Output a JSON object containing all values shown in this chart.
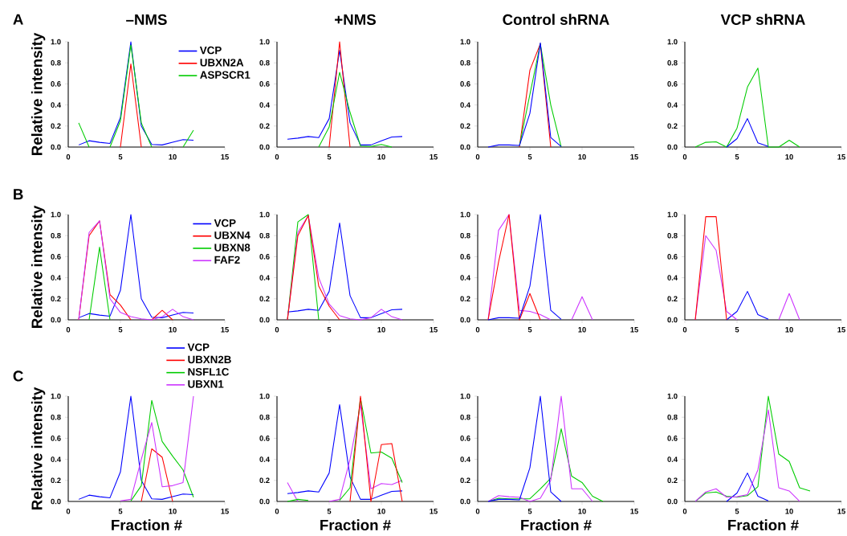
{
  "chart_data": [
    {
      "type": "line",
      "title": "–NMS",
      "ylabel": "Relative intensity",
      "annotations": [
        "A"
      ],
      "legend": "top right",
      "x": [
        1,
        2,
        3,
        4,
        5,
        6,
        7,
        8,
        9,
        10,
        11,
        12
      ],
      "xlim": [
        0,
        15
      ],
      "ylim": [
        0,
        1
      ],
      "xticks": [
        0,
        5,
        10,
        15
      ],
      "yticks": [
        {
          "value": 0,
          "label": "0.0"
        },
        {
          "value": 0.2,
          "label": "0.2"
        },
        {
          "value": 0.4,
          "label": "0.4"
        },
        {
          "value": 0.6,
          "label": "0.6"
        },
        {
          "value": 0.8,
          "label": "0.8"
        },
        {
          "value": 1,
          "label": "1.0"
        }
      ],
      "series": [
        {
          "name": "VCP",
          "color": "#0000ff",
          "values": [
            0.02,
            0.06,
            0.045,
            0.035,
            0.28,
            1.0,
            0.2,
            0.025,
            0.02,
            0.045,
            0.07,
            0.065
          ]
        },
        {
          "name": "UBXN2A",
          "color": "#ff0000",
          "values": [
            null,
            null,
            null,
            null,
            0,
            0.79,
            0,
            null,
            null,
            null,
            null,
            null
          ]
        },
        {
          "name": "ASPSCR1",
          "color": "#00cc00",
          "values": [
            0.23,
            0,
            null,
            0,
            0.25,
            0.97,
            0.23,
            0,
            null,
            null,
            0,
            0.16
          ]
        }
      ]
    },
    {
      "type": "line",
      "title": "+NMS",
      "x": [
        1,
        2,
        3,
        4,
        5,
        6,
        7,
        8,
        9,
        10,
        11,
        12
      ],
      "xlim": [
        0,
        15
      ],
      "ylim": [
        0,
        1
      ],
      "xticks": [
        0,
        5,
        10,
        15
      ],
      "yticks": [
        {
          "value": 0,
          "label": "0.0"
        },
        {
          "value": 0.2,
          "label": "0.2"
        },
        {
          "value": 0.4,
          "label": "0.4"
        },
        {
          "value": 0.6,
          "label": "0.6"
        },
        {
          "value": 0.8,
          "label": "0.8"
        },
        {
          "value": 1,
          "label": "1.0"
        }
      ],
      "series": [
        {
          "color": "#0000ff",
          "values": [
            0.075,
            0.085,
            0.1,
            0.09,
            0.27,
            0.92,
            0.23,
            0.02,
            0.02,
            0.06,
            0.095,
            0.1
          ]
        },
        {
          "color": "#ff0000",
          "values": [
            null,
            null,
            null,
            null,
            0,
            1.0,
            0,
            null,
            null,
            null,
            null,
            null
          ]
        },
        {
          "color": "#00cc00",
          "values": [
            null,
            null,
            null,
            0,
            0.19,
            0.71,
            0.33,
            0.01,
            0.005,
            0.025,
            0,
            null
          ]
        }
      ]
    },
    {
      "type": "line",
      "title": "Control shRNA",
      "x": [
        1,
        2,
        3,
        4,
        5,
        6,
        7,
        8
      ],
      "xlim": [
        0,
        15
      ],
      "ylim": [
        0,
        1
      ],
      "xticks": [
        0,
        5,
        10,
        15
      ],
      "yticks": [
        {
          "value": 0,
          "label": "0.0"
        },
        {
          "value": 0.2,
          "label": "0.2"
        },
        {
          "value": 0.4,
          "label": "0.4"
        },
        {
          "value": 0.6,
          "label": "0.6"
        },
        {
          "value": 0.8,
          "label": "0.8"
        },
        {
          "value": 1,
          "label": "1.0"
        }
      ],
      "series": [
        {
          "color": "#ff0000",
          "values": [
            null,
            null,
            null,
            0,
            0.73,
            0.98,
            0,
            null
          ]
        },
        {
          "color": "#00cc00",
          "values": [
            null,
            null,
            null,
            0.01,
            0.5,
            0.98,
            0.4,
            0
          ]
        },
        {
          "color": "#0000ff",
          "values": [
            0,
            0.02,
            0.02,
            0.015,
            0.32,
            0.99,
            0.09,
            0.005
          ]
        }
      ]
    },
    {
      "type": "line",
      "title": "VCP shRNA",
      "x": [
        1,
        2,
        3,
        4,
        5,
        6,
        7,
        8,
        9,
        10,
        11
      ],
      "xlim": [
        0,
        15
      ],
      "ylim": [
        0,
        1
      ],
      "xticks": [
        0,
        5,
        10,
        15
      ],
      "yticks": [
        {
          "value": 0,
          "label": "0.0"
        },
        {
          "value": 0.2,
          "label": "0.2"
        },
        {
          "value": 0.4,
          "label": "0.4"
        },
        {
          "value": 0.6,
          "label": "0.6"
        },
        {
          "value": 0.8,
          "label": "0.8"
        },
        {
          "value": 1,
          "label": "1.0"
        }
      ],
      "series": [
        {
          "color": "#00cc00",
          "values": [
            0,
            0.045,
            0.05,
            0,
            0.18,
            0.57,
            0.75,
            0,
            0,
            0.065,
            0
          ]
        },
        {
          "color": "#0000ff",
          "values": [
            null,
            null,
            null,
            0,
            0.08,
            0.27,
            0.04,
            0.005,
            null,
            null,
            null
          ]
        }
      ]
    },
    {
      "type": "line",
      "ylabel": "Relative intensity",
      "annotations": [
        "B"
      ],
      "legend": "top right",
      "x": [
        1,
        2,
        3,
        4,
        5,
        6,
        7,
        8,
        9,
        10,
        11,
        12
      ],
      "xlim": [
        0,
        15
      ],
      "ylim": [
        0,
        1
      ],
      "xticks": [
        0,
        5,
        10,
        15
      ],
      "yticks": [
        {
          "value": 0,
          "label": "0.0"
        },
        {
          "value": 0.2,
          "label": "0.2"
        },
        {
          "value": 0.4,
          "label": "0.4"
        },
        {
          "value": 0.6,
          "label": "0.6"
        },
        {
          "value": 0.8,
          "label": "0.8"
        },
        {
          "value": 1,
          "label": "1.0"
        }
      ],
      "series": [
        {
          "name": "VCP",
          "color": "#0000ff",
          "values": [
            0.02,
            0.06,
            0.045,
            0.035,
            0.28,
            1.0,
            0.2,
            0.025,
            0.02,
            0.045,
            0.07,
            0.065
          ]
        },
        {
          "name": "UBXN4",
          "color": "#ff0000",
          "values": [
            0,
            0.8,
            0.94,
            0.24,
            0.14,
            0,
            null,
            0,
            0.09,
            0,
            null,
            null
          ]
        },
        {
          "name": "UBXN8",
          "color": "#00cc00",
          "values": [
            null,
            0,
            0.69,
            0,
            null,
            null,
            null,
            null,
            null,
            null,
            null,
            null
          ]
        },
        {
          "name": "FAF2",
          "color": "#cc33ff",
          "values": [
            0,
            0.83,
            0.94,
            0.2,
            0.07,
            0.03,
            0.01,
            0,
            0.03,
            0.1,
            0.03,
            0
          ]
        }
      ]
    },
    {
      "type": "line",
      "x": [
        1,
        2,
        3,
        4,
        5,
        6,
        7,
        8,
        9,
        10,
        11,
        12
      ],
      "xlim": [
        0,
        15
      ],
      "ylim": [
        0,
        1
      ],
      "xticks": [
        0,
        5,
        10,
        15
      ],
      "yticks": [
        {
          "value": 0,
          "label": "0.0"
        },
        {
          "value": 0.2,
          "label": "0.2"
        },
        {
          "value": 0.4,
          "label": "0.4"
        },
        {
          "value": 0.6,
          "label": "0.6"
        },
        {
          "value": 0.8,
          "label": "0.8"
        },
        {
          "value": 1,
          "label": "1.0"
        }
      ],
      "series": [
        {
          "color": "#0000ff",
          "values": [
            0.075,
            0.085,
            0.1,
            0.09,
            0.27,
            0.92,
            0.23,
            0.02,
            0.02,
            0.06,
            0.095,
            0.1
          ]
        },
        {
          "color": "#00cc00",
          "values": [
            0,
            0.93,
            1.0,
            0,
            null,
            null,
            null,
            null,
            null,
            null,
            null,
            null
          ]
        },
        {
          "color": "#cc33ff",
          "values": [
            0,
            0.83,
            0.99,
            0.4,
            0.15,
            0.04,
            0.01,
            0,
            0.02,
            0.1,
            0.03,
            0
          ]
        },
        {
          "color": "#ff0000",
          "values": [
            0,
            0.8,
            0.99,
            0.32,
            0.13,
            0,
            null,
            null,
            null,
            null,
            null,
            null
          ]
        }
      ]
    },
    {
      "type": "line",
      "x": [
        1,
        2,
        3,
        4,
        5,
        6,
        7,
        8,
        9,
        10,
        11
      ],
      "xlim": [
        0,
        15
      ],
      "ylim": [
        0,
        1
      ],
      "xticks": [
        0,
        5,
        10,
        15
      ],
      "yticks": [
        {
          "value": 0,
          "label": "0.0"
        },
        {
          "value": 0.2,
          "label": "0.2"
        },
        {
          "value": 0.4,
          "label": "0.4"
        },
        {
          "value": 0.6,
          "label": "0.6"
        },
        {
          "value": 0.8,
          "label": "0.8"
        },
        {
          "value": 1,
          "label": "1.0"
        }
      ],
      "series": [
        {
          "color": "#cc33ff",
          "values": [
            0,
            0.85,
            1.0,
            0.09,
            0.08,
            0.05,
            0,
            null,
            0,
            0.22,
            0
          ]
        },
        {
          "color": "#ff0000",
          "values": [
            0,
            0.55,
            1.0,
            0,
            0.25,
            0,
            null,
            null,
            null,
            null,
            null
          ]
        },
        {
          "color": "#0000ff",
          "values": [
            0,
            0.02,
            0.02,
            0.015,
            0.32,
            1.0,
            0.09,
            0.005,
            null,
            null,
            null
          ]
        }
      ]
    },
    {
      "type": "line",
      "x": [
        1,
        2,
        3,
        4,
        5,
        6,
        7,
        8,
        9,
        10,
        11
      ],
      "xlim": [
        0,
        15
      ],
      "ylim": [
        0,
        1
      ],
      "xticks": [
        0,
        5,
        10,
        15
      ],
      "yticks": [
        {
          "value": 0,
          "label": "0.0"
        },
        {
          "value": 0.2,
          "label": "0.2"
        },
        {
          "value": 0.4,
          "label": "0.4"
        },
        {
          "value": 0.6,
          "label": "0.6"
        },
        {
          "value": 0.8,
          "label": "0.8"
        },
        {
          "value": 1,
          "label": "1.0"
        }
      ],
      "series": [
        {
          "color": "#0000ff",
          "values": [
            null,
            null,
            null,
            0,
            0.08,
            0.27,
            0.05,
            0.005,
            null,
            null,
            null
          ]
        },
        {
          "color": "#cc33ff",
          "values": [
            0,
            0.8,
            0.66,
            0.08,
            0,
            null,
            null,
            null,
            0,
            0.25,
            0
          ]
        },
        {
          "color": "#ff0000",
          "values": [
            0,
            0.98,
            0.98,
            0,
            null,
            null,
            null,
            null,
            null,
            null,
            null
          ]
        }
      ]
    },
    {
      "type": "line",
      "ylabel": "Relative intensity",
      "xlabel": "Fraction #",
      "annotations": [
        "C"
      ],
      "legend": "top",
      "x": [
        1,
        2,
        3,
        4,
        5,
        6,
        7,
        8,
        9,
        10,
        11,
        12
      ],
      "xlim": [
        0,
        15
      ],
      "ylim": [
        0,
        1
      ],
      "xticks": [
        0,
        5,
        10,
        15
      ],
      "yticks": [
        {
          "value": 0,
          "label": "0.0"
        },
        {
          "value": 0.2,
          "label": "0.2"
        },
        {
          "value": 0.4,
          "label": "0.4"
        },
        {
          "value": 0.6,
          "label": "0.6"
        },
        {
          "value": 0.8,
          "label": "0.8"
        },
        {
          "value": 1,
          "label": "1.0"
        }
      ],
      "series": [
        {
          "name": "VCP",
          "color": "#0000ff",
          "values": [
            0.02,
            0.06,
            0.045,
            0.035,
            0.28,
            1.0,
            0.2,
            0.025,
            0.02,
            0.045,
            0.07,
            0.065
          ]
        },
        {
          "name": "UBXN2B",
          "color": "#ff0000",
          "values": [
            null,
            null,
            null,
            null,
            null,
            null,
            0,
            0.5,
            0.42,
            0,
            null,
            null
          ]
        },
        {
          "name": "NSFL1C",
          "color": "#00cc00",
          "values": [
            null,
            null,
            null,
            null,
            null,
            0.005,
            0.15,
            0.96,
            0.57,
            0.43,
            0.3,
            0.04
          ]
        },
        {
          "name": "UBXN1",
          "color": "#cc33ff",
          "values": [
            null,
            null,
            null,
            null,
            0.005,
            0.02,
            0.4,
            0.75,
            0.14,
            0.15,
            0.18,
            1.0
          ]
        }
      ]
    },
    {
      "type": "line",
      "xlabel": "Fraction #",
      "x": [
        1,
        2,
        3,
        4,
        5,
        6,
        7,
        8,
        9,
        10,
        11,
        12
      ],
      "xlim": [
        0,
        15
      ],
      "ylim": [
        0,
        1
      ],
      "xticks": [
        0,
        5,
        10,
        15
      ],
      "yticks": [
        {
          "value": 0,
          "label": "0.0"
        },
        {
          "value": 0.2,
          "label": "0.2"
        },
        {
          "value": 0.4,
          "label": "0.4"
        },
        {
          "value": 0.6,
          "label": "0.6"
        },
        {
          "value": 0.8,
          "label": "0.8"
        },
        {
          "value": 1,
          "label": "1.0"
        }
      ],
      "series": [
        {
          "color": "#0000ff",
          "values": [
            0.075,
            0.085,
            0.1,
            0.09,
            0.27,
            0.92,
            0.23,
            0.02,
            0.02,
            0.06,
            0.095,
            0.1
          ]
        },
        {
          "color": "#cc33ff",
          "values": [
            0.18,
            0,
            null,
            null,
            0,
            0.02,
            0.4,
            0.92,
            0.12,
            0.17,
            0.16,
            0.2
          ]
        },
        {
          "color": "#00cc00",
          "values": [
            0,
            0.02,
            0.01,
            null,
            null,
            0.01,
            0.13,
            0.98,
            0.46,
            0.47,
            0.41,
            0.18
          ]
        },
        {
          "color": "#ff0000",
          "values": [
            null,
            null,
            null,
            null,
            null,
            null,
            0,
            1.0,
            0,
            0.54,
            0.55,
            0
          ]
        }
      ]
    },
    {
      "type": "line",
      "xlabel": "Fraction #",
      "x": [
        1,
        2,
        3,
        4,
        5,
        6,
        7,
        8,
        9,
        10,
        11,
        12
      ],
      "xlim": [
        0,
        15
      ],
      "ylim": [
        0,
        1
      ],
      "xticks": [
        0,
        5,
        10,
        15
      ],
      "yticks": [
        {
          "value": 0,
          "label": "0.0"
        },
        {
          "value": 0.2,
          "label": "0.2"
        },
        {
          "value": 0.4,
          "label": "0.4"
        },
        {
          "value": 0.6,
          "label": "0.6"
        },
        {
          "value": 0.8,
          "label": "0.8"
        },
        {
          "value": 1,
          "label": "1.0"
        }
      ],
      "series": [
        {
          "color": "#00cc00",
          "values": [
            0,
            0.03,
            0.025,
            0.025,
            0.025,
            0.12,
            0.22,
            0.69,
            0.24,
            0.18,
            0.05,
            0
          ]
        },
        {
          "color": "#cc33ff",
          "values": [
            0,
            0.055,
            0.045,
            0.04,
            0,
            0.03,
            0.2,
            1.0,
            0.12,
            0.12,
            0,
            null
          ]
        },
        {
          "color": "#0000ff",
          "values": [
            0,
            0.02,
            0.02,
            0.015,
            0.32,
            1.0,
            0.09,
            0,
            null,
            null,
            null,
            null
          ]
        }
      ]
    },
    {
      "type": "line",
      "xlabel": "Fraction #",
      "x": [
        1,
        2,
        3,
        4,
        5,
        6,
        7,
        8,
        9,
        10,
        11,
        12
      ],
      "xlim": [
        0,
        15
      ],
      "ylim": [
        0,
        1
      ],
      "xticks": [
        0,
        5,
        10,
        15
      ],
      "yticks": [
        {
          "value": 0,
          "label": "0.0"
        },
        {
          "value": 0.2,
          "label": "0.2"
        },
        {
          "value": 0.4,
          "label": "0.4"
        },
        {
          "value": 0.6,
          "label": "0.6"
        },
        {
          "value": 0.8,
          "label": "0.8"
        },
        {
          "value": 1,
          "label": "1.0"
        }
      ],
      "series": [
        {
          "color": "#0000ff",
          "values": [
            null,
            null,
            null,
            0,
            0.08,
            0.27,
            0.05,
            0.005,
            null,
            null,
            null,
            null
          ]
        },
        {
          "color": "#00cc00",
          "values": [
            0,
            0.08,
            0.09,
            0.05,
            0.04,
            0.055,
            0.14,
            1.0,
            0.45,
            0.38,
            0.13,
            0.1
          ]
        },
        {
          "color": "#cc33ff",
          "values": [
            0,
            0.09,
            0.12,
            0.04,
            0.045,
            0.065,
            0.3,
            0.87,
            0.13,
            0.1,
            0,
            null
          ]
        }
      ]
    }
  ]
}
